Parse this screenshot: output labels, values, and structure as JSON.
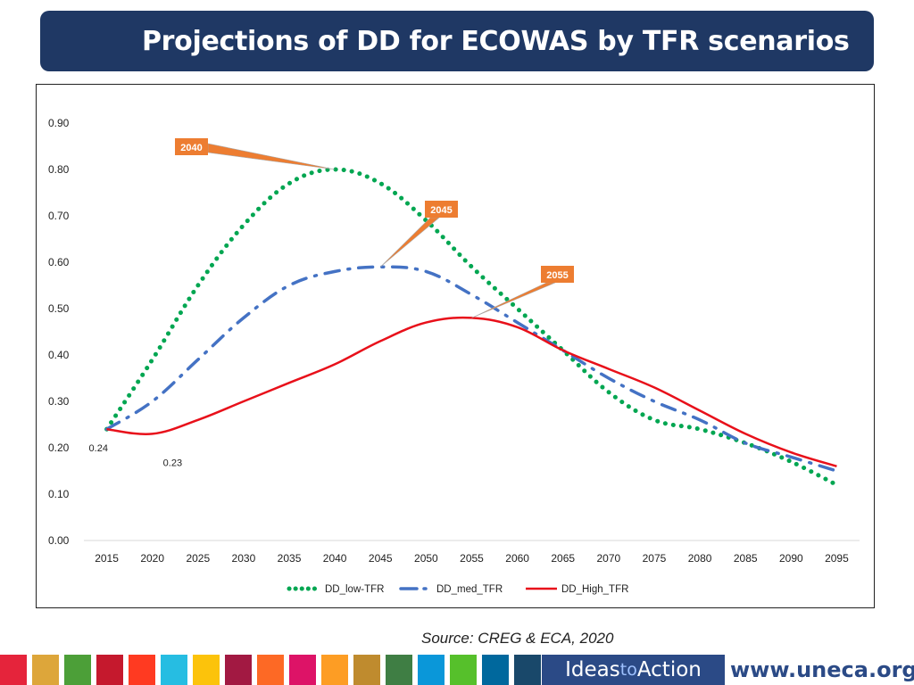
{
  "colors": {
    "title_bg": "#1f3864",
    "low": "#00a651",
    "med": "#4472c4",
    "high": "#e8101a",
    "callout": "#ed7d31",
    "grid": "#d9d9d9",
    "sdg_tiles": [
      "#e5243b",
      "#dda63a",
      "#4c9f38",
      "#c5192d",
      "#ff3a21",
      "#26bde2",
      "#fcc30b",
      "#a21942",
      "#fd6925",
      "#dd1367",
      "#fd9d24",
      "#bf8b2e",
      "#3f7e44",
      "#0a97d9",
      "#56c02b",
      "#00689d",
      "#19486a"
    ]
  },
  "title": "Projections of DD for ECOWAS by TFR scenarios",
  "source": "Source: CREG & ECA, 2020",
  "footer": {
    "ideas_prefix": "Ideas",
    "ideas_to": "to",
    "ideas_suffix": "Action",
    "url": "www.uneca.org"
  },
  "chart_data": {
    "type": "line",
    "title": "",
    "xlabel": "",
    "ylabel": "",
    "ylim": [
      0,
      0.9
    ],
    "yticks": [
      "0.00",
      "0.10",
      "0.20",
      "0.30",
      "0.40",
      "0.50",
      "0.60",
      "0.70",
      "0.80",
      "0.90"
    ],
    "x": [
      "2015",
      "2020",
      "2025",
      "2030",
      "2035",
      "2040",
      "2045",
      "2050",
      "2055",
      "2060",
      "2065",
      "2070",
      "2075",
      "2080",
      "2085",
      "2090",
      "2095"
    ],
    "series": [
      {
        "name": "DD_low-TFR",
        "style": "dotted",
        "color": "#00a651",
        "values": [
          0.24,
          0.39,
          0.55,
          0.68,
          0.77,
          0.8,
          0.77,
          0.69,
          0.59,
          0.5,
          0.41,
          0.32,
          0.26,
          0.24,
          0.21,
          0.17,
          0.12
        ]
      },
      {
        "name": "DD_med_TFR",
        "style": "dashdot",
        "color": "#4472c4",
        "values": [
          0.24,
          0.3,
          0.39,
          0.48,
          0.55,
          0.58,
          0.59,
          0.58,
          0.53,
          0.47,
          0.41,
          0.35,
          0.3,
          0.26,
          0.21,
          0.18,
          0.15
        ]
      },
      {
        "name": "DD_High_TFR",
        "style": "solid",
        "color": "#e8101a",
        "values": [
          0.24,
          0.23,
          0.26,
          0.3,
          0.34,
          0.38,
          0.43,
          0.47,
          0.48,
          0.46,
          0.41,
          0.37,
          0.33,
          0.28,
          0.23,
          0.19,
          0.16
        ]
      }
    ],
    "data_labels": [
      {
        "series": "DD_low-TFR",
        "x": "2015",
        "text": "0.24"
      },
      {
        "series": "DD_High_TFR",
        "x": "2020",
        "text": "0.23"
      }
    ],
    "callouts": [
      {
        "text": "2040",
        "series": "DD_low-TFR",
        "x": "2040"
      },
      {
        "text": "2045",
        "series": "DD_med_TFR",
        "x": "2045"
      },
      {
        "text": "2055",
        "series": "DD_High_TFR",
        "x": "2055"
      }
    ],
    "legend": {
      "position": "bottom",
      "entries": [
        "DD_low-TFR",
        "DD_med_TFR",
        "DD_High_TFR"
      ]
    }
  }
}
